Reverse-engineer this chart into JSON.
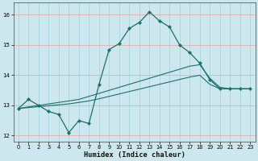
{
  "xlabel": "Humidex (Indice chaleur)",
  "bg_color": "#cce8ee",
  "line_color": "#1e6e6e",
  "xlim": [
    -0.5,
    23.5
  ],
  "ylim": [
    11.8,
    16.4
  ],
  "yticks": [
    12,
    13,
    14,
    15,
    16
  ],
  "xticks": [
    0,
    1,
    2,
    3,
    4,
    5,
    6,
    7,
    8,
    9,
    10,
    11,
    12,
    13,
    14,
    15,
    16,
    17,
    18,
    19,
    20,
    21,
    22,
    23
  ],
  "line1_x": [
    0,
    1,
    2,
    3,
    4,
    5,
    6,
    7,
    8,
    9,
    10,
    11,
    12,
    13,
    14,
    15,
    16,
    17,
    18,
    19,
    20,
    21,
    22,
    23
  ],
  "line1_y": [
    12.9,
    13.2,
    13.0,
    12.8,
    12.7,
    12.1,
    12.5,
    12.4,
    13.7,
    14.85,
    15.05,
    15.55,
    15.75,
    16.1,
    15.8,
    15.6,
    15.0,
    14.75,
    14.4,
    13.85,
    13.55,
    13.55,
    13.55,
    13.55
  ],
  "line2_x": [
    0,
    23
  ],
  "line2_y": [
    12.9,
    13.55
  ],
  "line3_x": [
    0,
    23
  ],
  "line3_y": [
    12.9,
    13.55
  ],
  "line2_full_x": [
    0,
    1,
    2,
    3,
    4,
    5,
    6,
    7,
    8,
    9,
    10,
    11,
    12,
    13,
    14,
    15,
    16,
    17,
    18,
    19,
    20,
    21,
    22,
    23
  ],
  "line2_full_y": [
    12.9,
    12.95,
    13.0,
    13.05,
    13.1,
    13.15,
    13.2,
    13.3,
    13.4,
    13.5,
    13.6,
    13.7,
    13.8,
    13.9,
    14.0,
    14.1,
    14.2,
    14.3,
    14.35,
    13.9,
    13.6,
    13.55,
    13.55,
    13.55
  ],
  "line3_full_x": [
    0,
    1,
    2,
    3,
    4,
    5,
    6,
    7,
    8,
    9,
    10,
    11,
    12,
    13,
    14,
    15,
    16,
    17,
    18,
    19,
    20,
    21,
    22,
    23
  ],
  "line3_full_y": [
    12.9,
    12.93,
    12.96,
    12.99,
    13.02,
    13.05,
    13.1,
    13.15,
    13.22,
    13.3,
    13.38,
    13.46,
    13.54,
    13.62,
    13.7,
    13.78,
    13.86,
    13.94,
    14.0,
    13.7,
    13.55,
    13.55,
    13.55,
    13.55
  ]
}
